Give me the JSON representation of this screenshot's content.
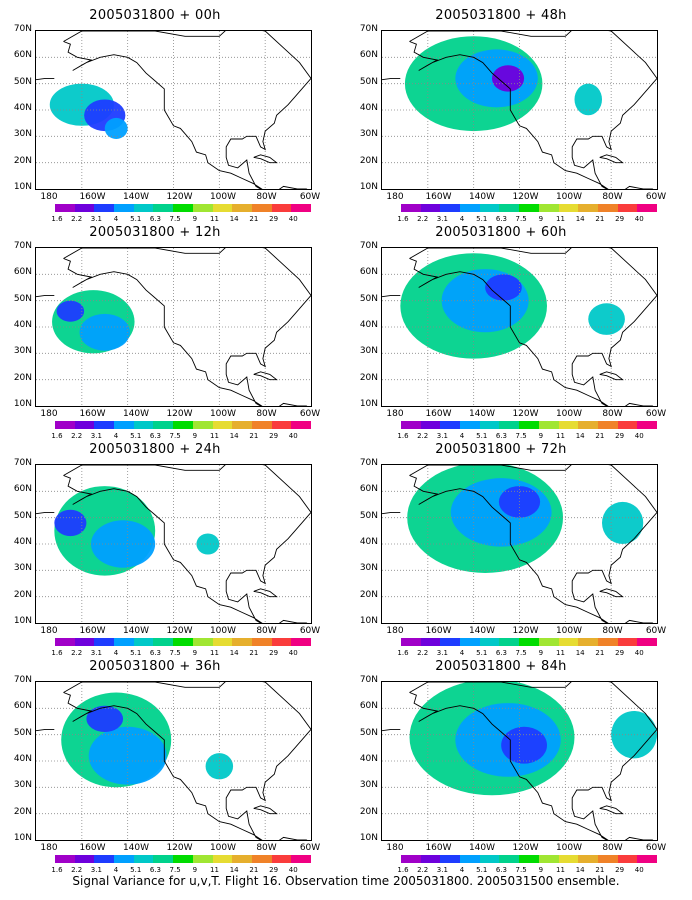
{
  "panels": [
    {
      "title": "2005031800 + 00h",
      "blobs": [
        {
          "cx": 160,
          "cy": 42,
          "rx": 14,
          "ry": 8,
          "level": 4
        },
        {
          "cx": 150,
          "cy": 38,
          "rx": 9,
          "ry": 6,
          "level": 2
        },
        {
          "cx": 145,
          "cy": 33,
          "rx": 5,
          "ry": 4,
          "level": 3
        }
      ]
    },
    {
      "title": "2005031800 + 12h",
      "blobs": [
        {
          "cx": 155,
          "cy": 42,
          "rx": 18,
          "ry": 12,
          "level": 5
        },
        {
          "cx": 150,
          "cy": 38,
          "rx": 11,
          "ry": 7,
          "level": 3
        },
        {
          "cx": 165,
          "cy": 46,
          "rx": 6,
          "ry": 4,
          "level": 2
        }
      ]
    },
    {
      "title": "2005031800 + 24h",
      "blobs": [
        {
          "cx": 150,
          "cy": 45,
          "rx": 22,
          "ry": 17,
          "level": 5
        },
        {
          "cx": 142,
          "cy": 40,
          "rx": 14,
          "ry": 9,
          "level": 3
        },
        {
          "cx": 165,
          "cy": 48,
          "rx": 7,
          "ry": 5,
          "level": 2
        },
        {
          "cx": 105,
          "cy": 40,
          "rx": 5,
          "ry": 4,
          "level": 4
        }
      ]
    },
    {
      "title": "2005031800 + 36h",
      "blobs": [
        {
          "cx": 145,
          "cy": 48,
          "rx": 24,
          "ry": 18,
          "level": 5
        },
        {
          "cx": 140,
          "cy": 42,
          "rx": 17,
          "ry": 11,
          "level": 3
        },
        {
          "cx": 150,
          "cy": 56,
          "rx": 8,
          "ry": 5,
          "level": 2
        },
        {
          "cx": 100,
          "cy": 38,
          "rx": 6,
          "ry": 5,
          "level": 4
        }
      ]
    },
    {
      "title": "2005031800 + 48h",
      "blobs": [
        {
          "cx": 140,
          "cy": 50,
          "rx": 30,
          "ry": 18,
          "level": 5
        },
        {
          "cx": 130,
          "cy": 52,
          "rx": 18,
          "ry": 11,
          "level": 3
        },
        {
          "cx": 125,
          "cy": 52,
          "rx": 7,
          "ry": 5,
          "level": 1
        },
        {
          "cx": 90,
          "cy": 44,
          "rx": 6,
          "ry": 6,
          "level": 4
        }
      ]
    },
    {
      "title": "2005031800 + 60h",
      "blobs": [
        {
          "cx": 140,
          "cy": 48,
          "rx": 32,
          "ry": 20,
          "level": 5
        },
        {
          "cx": 135,
          "cy": 50,
          "rx": 19,
          "ry": 12,
          "level": 3
        },
        {
          "cx": 127,
          "cy": 55,
          "rx": 8,
          "ry": 5,
          "level": 2
        },
        {
          "cx": 82,
          "cy": 43,
          "rx": 8,
          "ry": 6,
          "level": 4
        }
      ]
    },
    {
      "title": "2005031800 + 72h",
      "blobs": [
        {
          "cx": 135,
          "cy": 50,
          "rx": 34,
          "ry": 21,
          "level": 5
        },
        {
          "cx": 128,
          "cy": 52,
          "rx": 22,
          "ry": 13,
          "level": 3
        },
        {
          "cx": 120,
          "cy": 56,
          "rx": 9,
          "ry": 6,
          "level": 2
        },
        {
          "cx": 75,
          "cy": 48,
          "rx": 9,
          "ry": 8,
          "level": 4
        }
      ]
    },
    {
      "title": "2005031800 + 84h",
      "blobs": [
        {
          "cx": 132,
          "cy": 49,
          "rx": 36,
          "ry": 22,
          "level": 5
        },
        {
          "cx": 125,
          "cy": 48,
          "rx": 23,
          "ry": 14,
          "level": 3
        },
        {
          "cx": 118,
          "cy": 46,
          "rx": 10,
          "ry": 7,
          "level": 2
        },
        {
          "cx": 70,
          "cy": 50,
          "rx": 10,
          "ry": 9,
          "level": 4
        }
      ]
    }
  ],
  "y_ticks": [
    "70N",
    "60N",
    "50N",
    "40N",
    "30N",
    "20N",
    "10N"
  ],
  "x_ticks": [
    "180",
    "160W",
    "140W",
    "120W",
    "100W",
    "80W",
    "60W"
  ],
  "colorbar": {
    "colors": [
      "#a000c8",
      "#6e00dc",
      "#1e3cff",
      "#00a0ff",
      "#00c8c8",
      "#00d28c",
      "#00dc00",
      "#a0e632",
      "#e6dc32",
      "#e6af2d",
      "#f08228",
      "#fa3c3c",
      "#f00082"
    ],
    "labels": [
      "1.6",
      "2.2",
      "3.1",
      "4",
      "5.1",
      "6.3",
      "7.5",
      "9",
      "11",
      "14",
      "21",
      "29",
      "40"
    ]
  },
  "levels": [
    "#a000c8",
    "#6e00dc",
    "#1e3cff",
    "#00a0ff",
    "#00c8c8",
    "#00d28c"
  ],
  "caption": "Signal Variance for u,v,T. Flight 16. Observation time 2005031800. 2005031500 ensemble."
}
